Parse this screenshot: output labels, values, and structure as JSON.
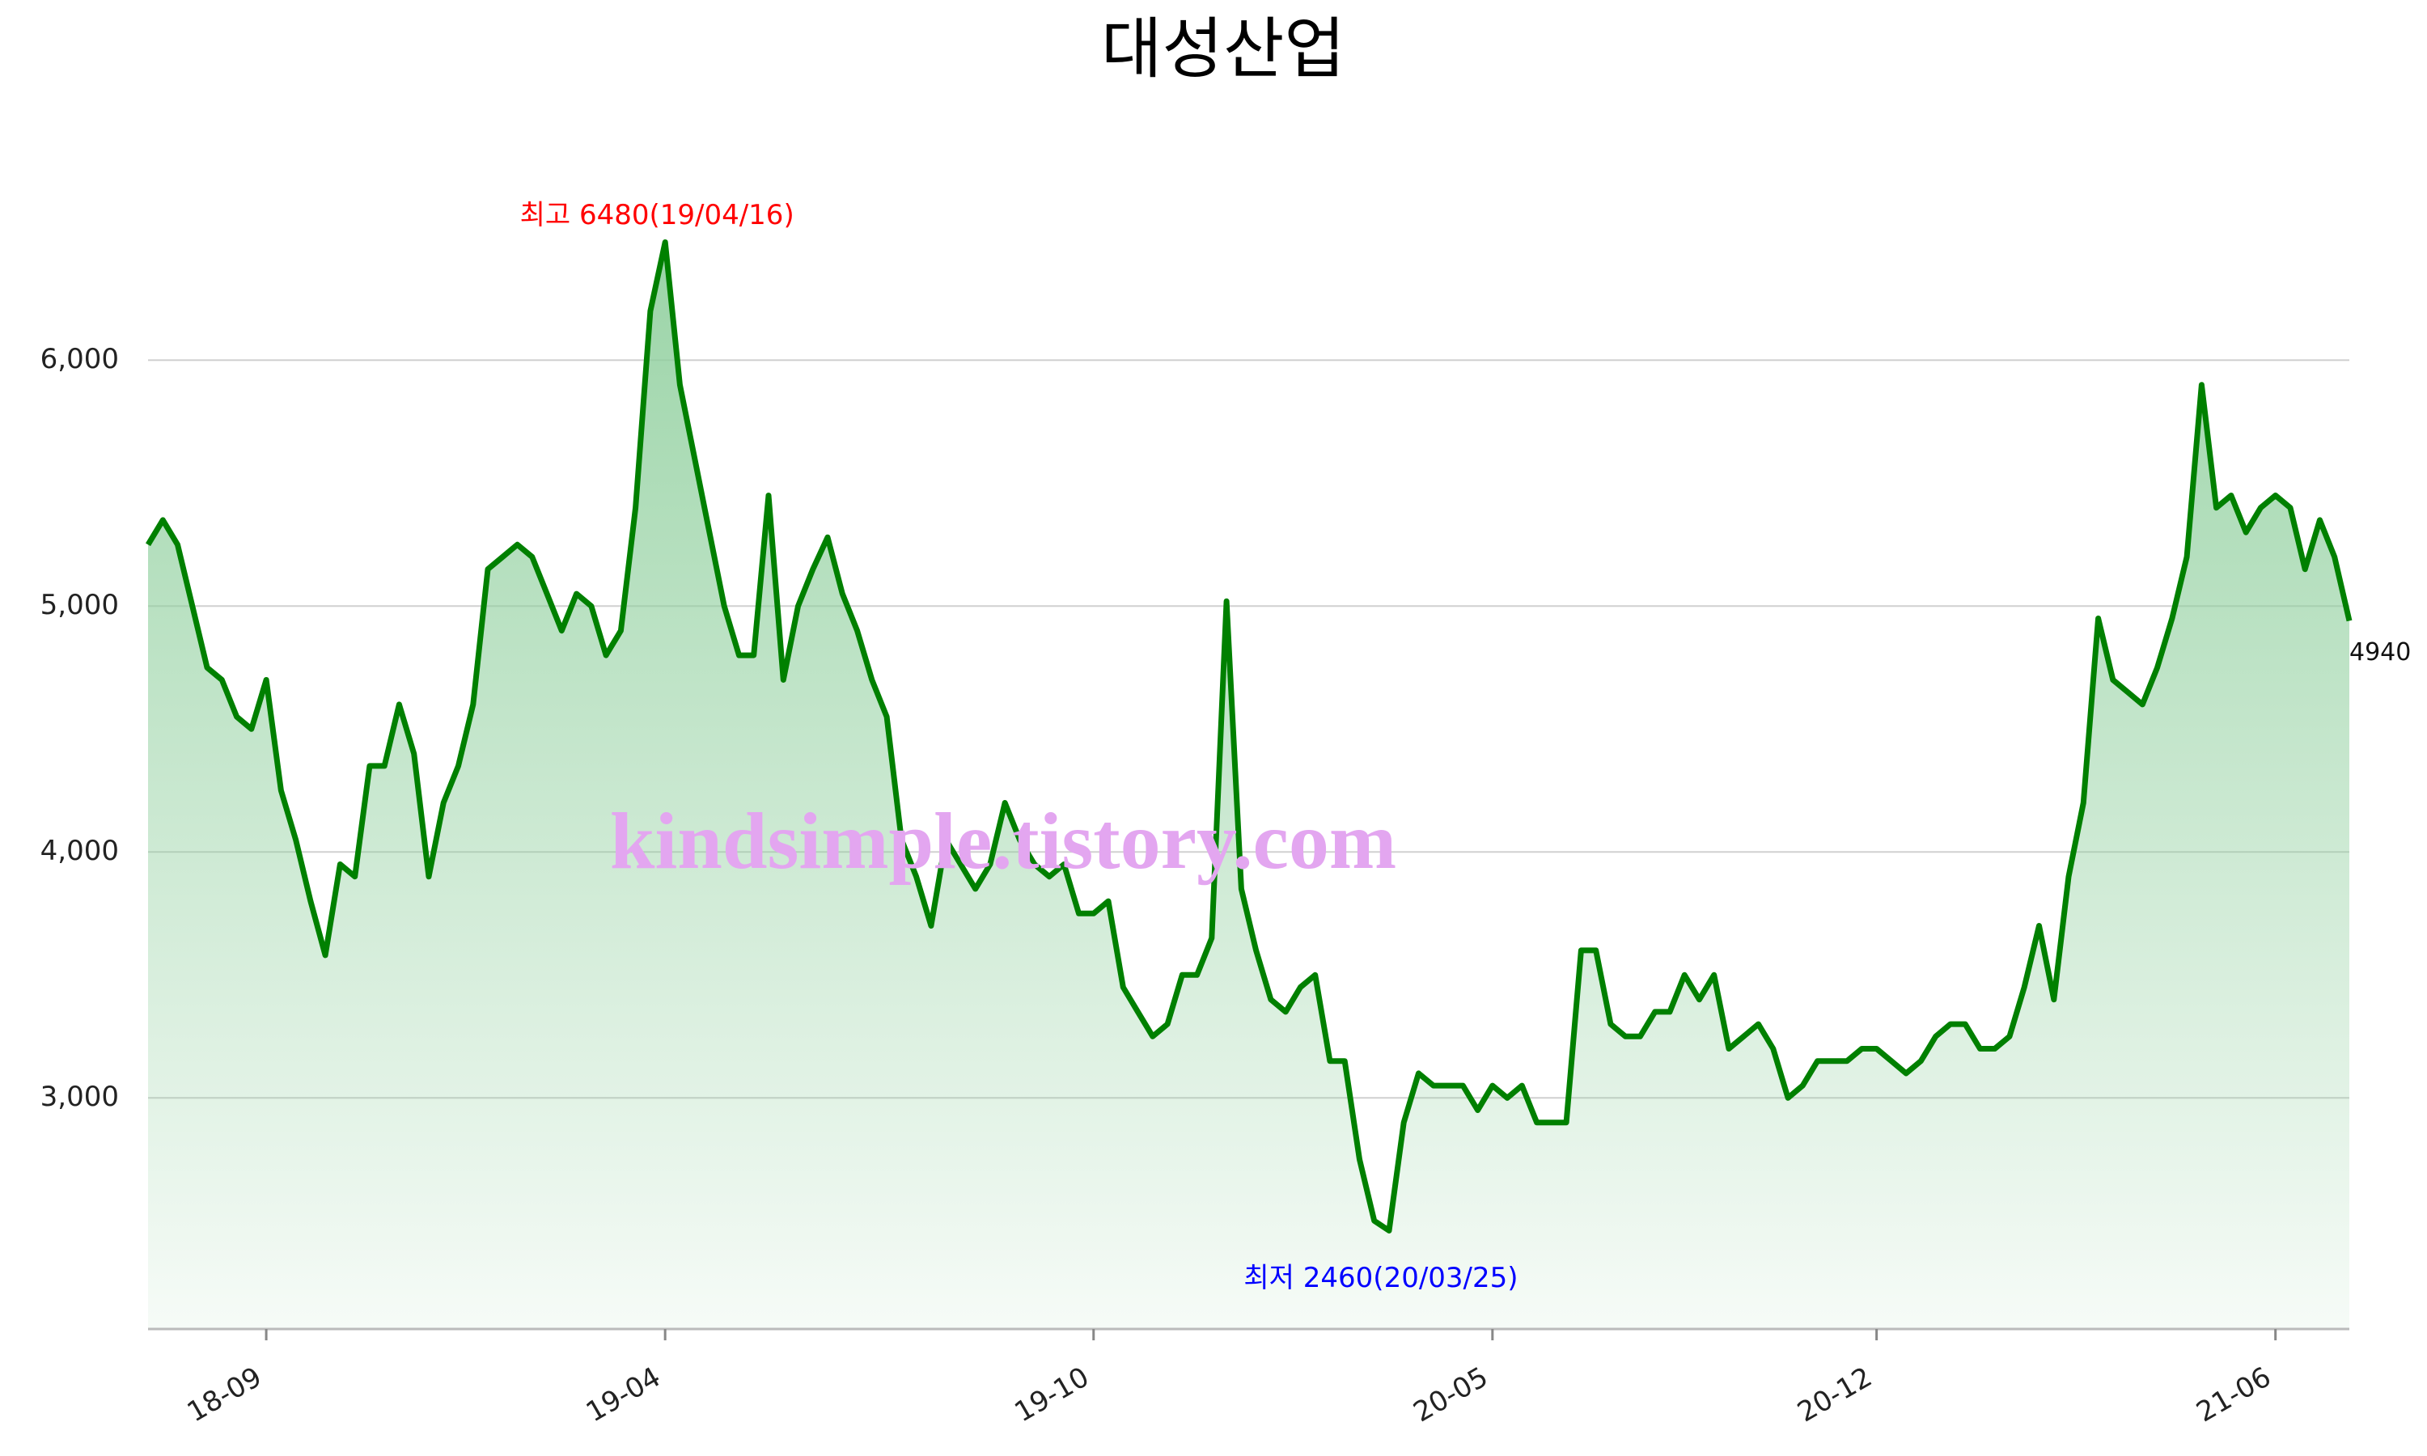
{
  "chart_data": {
    "type": "area",
    "title": "대성산업",
    "color": "#008000",
    "fill_color": "#8fcf9d",
    "grid": true,
    "ylim": [
      2060,
      6830
    ],
    "yticks": [
      {
        "value": 3000,
        "label": "3,000"
      },
      {
        "value": 4000,
        "label": "4,000"
      },
      {
        "value": 5000,
        "label": "5,000"
      },
      {
        "value": 6000,
        "label": "6,000"
      }
    ],
    "xticks": [
      "18-09",
      "19-04",
      "19-10",
      "20-05",
      "20-12",
      "21-06"
    ],
    "x": [
      "18-07",
      "18-07",
      "18-07",
      "18-07",
      "18-08",
      "18-08",
      "18-08",
      "18-08",
      "18-09",
      "18-09",
      "18-09",
      "18-10",
      "18-10",
      "18-10",
      "18-10",
      "18-10",
      "18-11",
      "18-11",
      "18-11",
      "18-12",
      "18-12",
      "18-12",
      "18-12",
      "19-01",
      "19-01",
      "19-01",
      "19-01",
      "19-02",
      "19-02",
      "19-02",
      "19-03",
      "19-03",
      "19-03",
      "19-03",
      "19-03",
      "19-04",
      "19-04",
      "19-04",
      "19-04",
      "19-04",
      "19-05",
      "19-05",
      "19-05",
      "19-05",
      "19-05",
      "19-05",
      "19-06",
      "19-06",
      "19-06",
      "19-06",
      "19-06",
      "19-07",
      "19-07",
      "19-07",
      "19-07",
      "19-07",
      "19-08",
      "19-08",
      "19-08",
      "19-08",
      "19-09",
      "19-09",
      "19-09",
      "19-09",
      "19-10",
      "19-10",
      "19-10",
      "19-10",
      "19-11",
      "19-11",
      "19-11",
      "19-11",
      "19-12",
      "19-12",
      "19-12",
      "19-12",
      "20-01",
      "20-01",
      "20-01",
      "20-01",
      "20-02",
      "20-02",
      "20-02",
      "20-02",
      "20-03",
      "20-03",
      "20-03",
      "20-04",
      "20-04",
      "20-04",
      "20-04",
      "20-05",
      "20-05",
      "20-05",
      "20-05",
      "20-06",
      "20-06",
      "20-06",
      "20-07",
      "20-07",
      "20-07",
      "20-07",
      "20-08",
      "20-08",
      "20-08",
      "20-08",
      "20-09",
      "20-09",
      "20-09",
      "20-09",
      "20-10",
      "20-10",
      "20-10",
      "20-11",
      "20-11",
      "20-11",
      "20-11",
      "20-12",
      "20-12",
      "20-12",
      "20-12",
      "21-01",
      "21-01",
      "21-01",
      "21-01",
      "21-01",
      "21-02",
      "21-02",
      "21-02",
      "21-02",
      "21-03",
      "21-03",
      "21-03",
      "21-03",
      "21-03",
      "21-04",
      "21-04",
      "21-04",
      "21-04",
      "21-05",
      "21-05",
      "21-05",
      "21-05",
      "21-05",
      "21-06",
      "21-06",
      "21-06",
      "21-06",
      "21-06",
      "21-06"
    ],
    "values": [
      5250,
      5350,
      5250,
      5000,
      4750,
      4700,
      4550,
      4500,
      4700,
      4250,
      4050,
      3800,
      3580,
      3950,
      3900,
      4350,
      4350,
      4600,
      4400,
      3900,
      4200,
      4350,
      4600,
      5150,
      5200,
      5250,
      5200,
      5050,
      4900,
      5050,
      5000,
      4800,
      4900,
      5400,
      6200,
      6480,
      5900,
      5600,
      5300,
      5000,
      4800,
      4800,
      5450,
      4700,
      5000,
      5150,
      5280,
      5050,
      4900,
      4700,
      4550,
      4050,
      3900,
      3700,
      4050,
      3950,
      3850,
      3950,
      4200,
      4050,
      3950,
      3900,
      3950,
      3750,
      3750,
      3800,
      3450,
      3350,
      3250,
      3300,
      3500,
      3500,
      3650,
      5020,
      3850,
      3600,
      3400,
      3350,
      3450,
      3500,
      3150,
      3150,
      2750,
      2500,
      2460,
      2900,
      3100,
      3050,
      3050,
      3050,
      2950,
      3050,
      3000,
      3050,
      2900,
      2900,
      2900,
      3600,
      3600,
      3300,
      3250,
      3250,
      3350,
      3350,
      3500,
      3400,
      3500,
      3200,
      3250,
      3300,
      3200,
      3000,
      3050,
      3150,
      3150,
      3150,
      3200,
      3200,
      3150,
      3100,
      3150,
      3250,
      3300,
      3300,
      3200,
      3200,
      3250,
      3450,
      3700,
      3400,
      3900,
      4200,
      4950,
      4700,
      4650,
      4600,
      4750,
      4950,
      5200,
      5900,
      5400,
      5450,
      5300,
      5400,
      5450,
      5400,
      5150,
      5350,
      5200,
      4940
    ],
    "annotations": [
      {
        "text": "최고 6480(19/04/16)",
        "color": "#ff0000",
        "at": "max"
      },
      {
        "text": "최저 2460(20/03/25)",
        "color": "#0000ff",
        "at": "min"
      }
    ],
    "end_label": "4940",
    "watermark": "kindsimple.tistory.com",
    "watermark_color": "#e3a6f0"
  }
}
